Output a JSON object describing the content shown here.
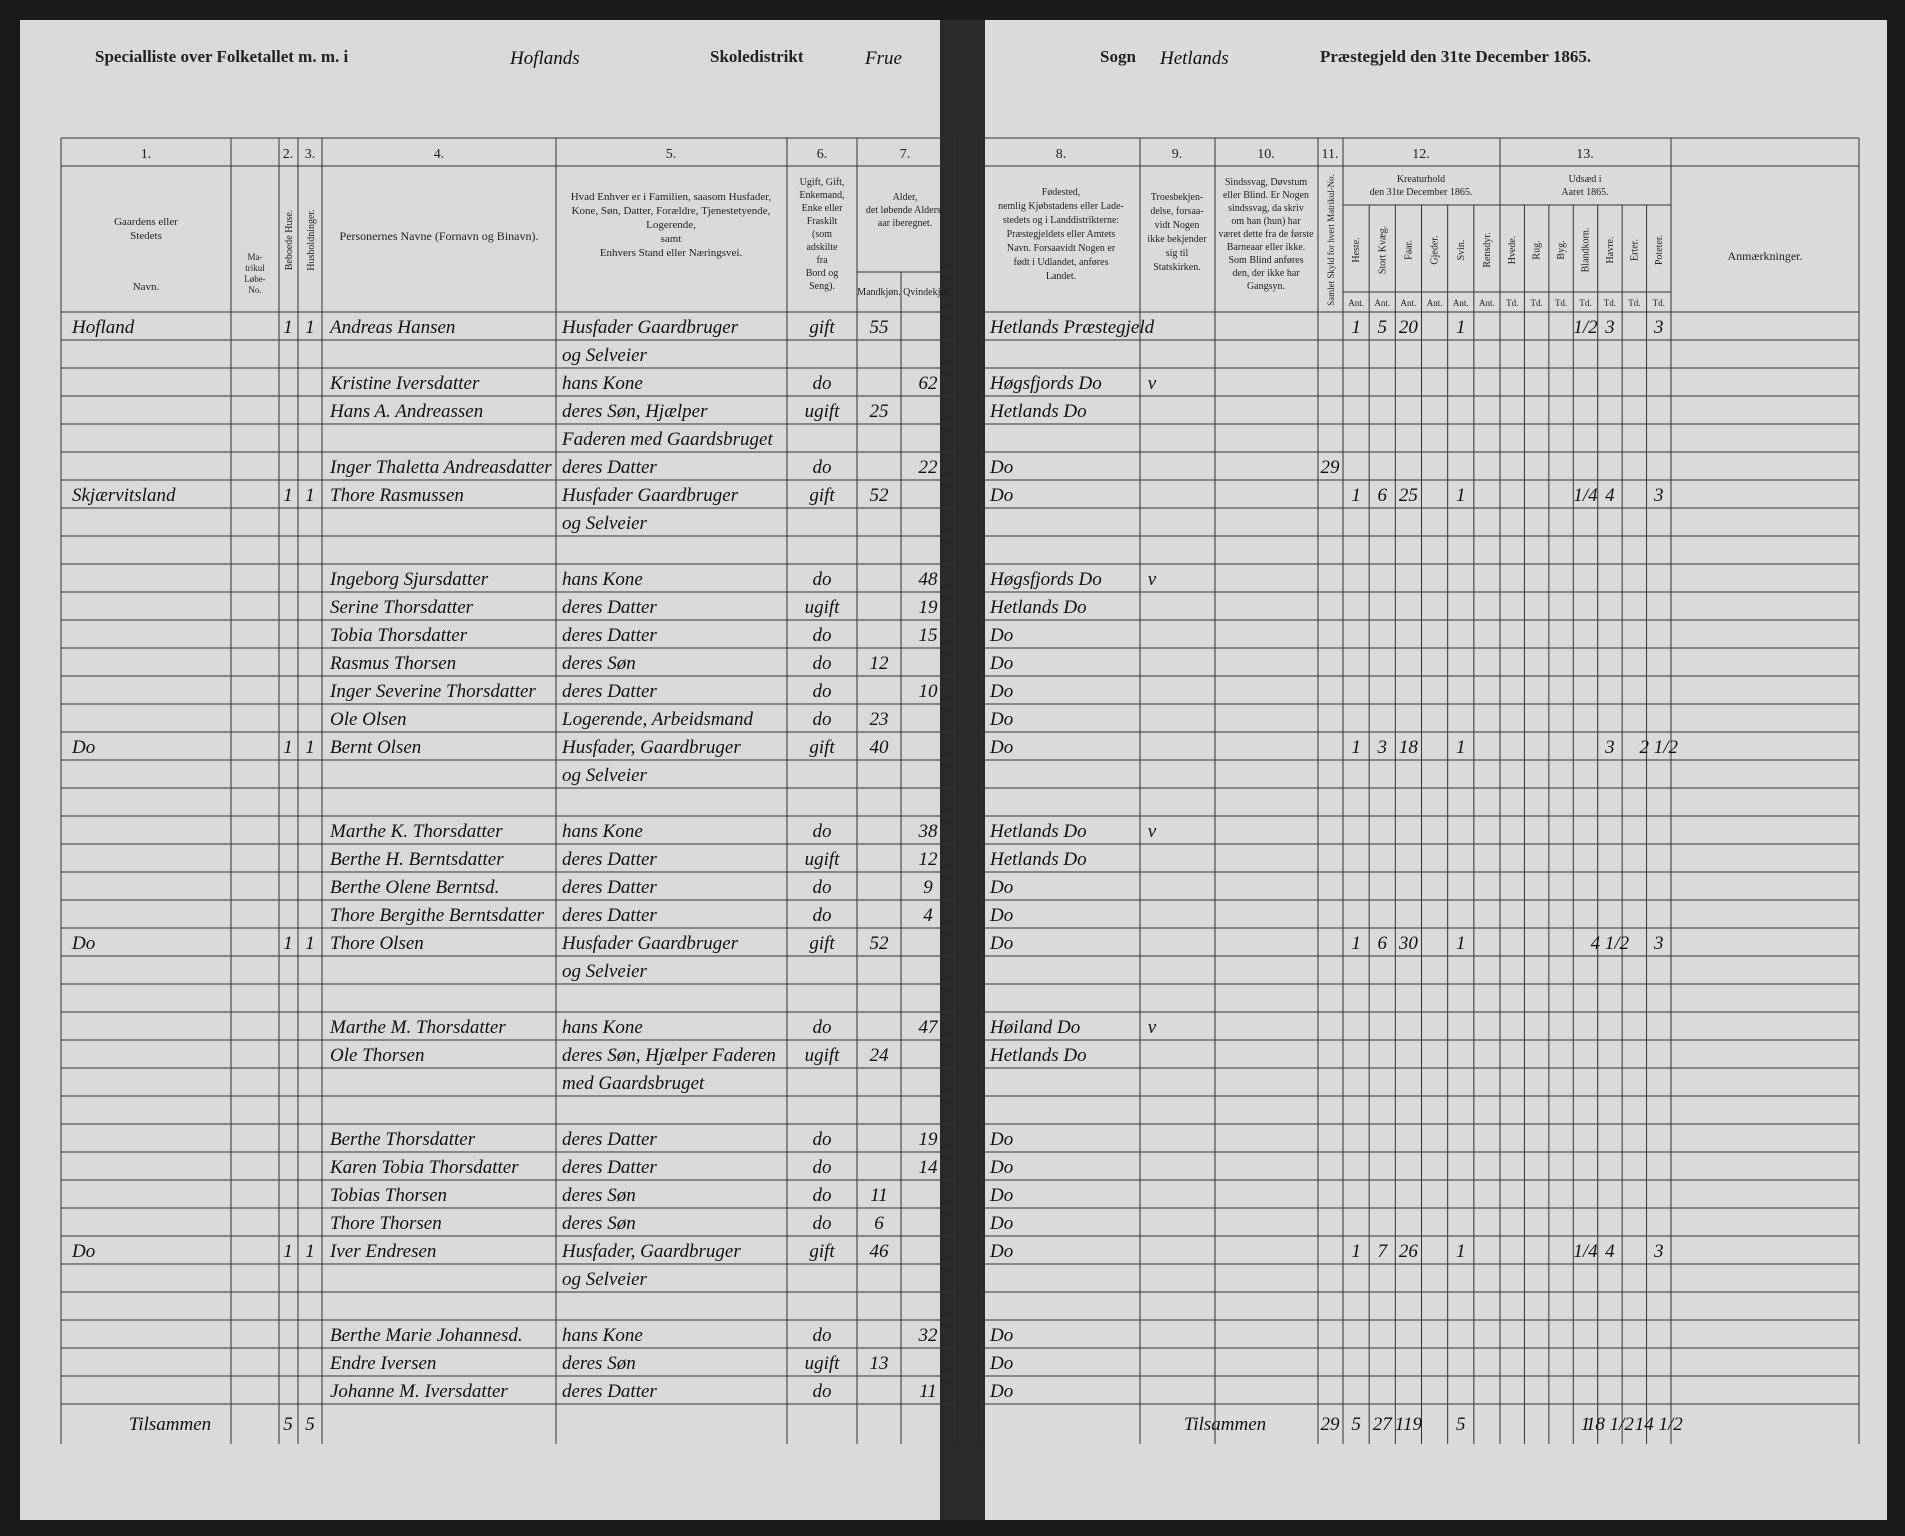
{
  "header": {
    "left": {
      "printed": "Specialliste over Folketallet m. m. i",
      "district": "Hoflands",
      "printed2": "Skoledistrikt",
      "extra": "Frue"
    },
    "right": {
      "printed": "Sogn",
      "parish": "Hetlands",
      "printed2": "Præstegjeld den 31te December 1865."
    }
  },
  "columns": {
    "numbers": [
      "1.",
      "2.",
      "3.",
      "4.",
      "5.",
      "6.",
      "7.",
      "8.",
      "9.",
      "10.",
      "11.",
      "12.",
      "13."
    ],
    "farm": [
      "Gaardens eller",
      "Stedets"
    ],
    "farm_name": "Navn.",
    "matr": [
      "Ma-",
      "trikul",
      "Løbe-",
      "No."
    ],
    "houses": "Beboede Huse.",
    "households": "Husholdninger.",
    "name": [
      "Personernes Navne (Fornavn og Binavn)."
    ],
    "position": [
      "Hvad Enhver er i Familien, saasom Husfader,",
      "Kone, Søn, Datter, Forældre, Tjenestetyende,",
      "Logerende,",
      "samt",
      "Enhvers Stand eller Næringsvei."
    ],
    "status": [
      "Ugift, Gift,",
      "Enkemand,",
      "Enke eller",
      "Fraskilt",
      "(som",
      "adskilte",
      "fra",
      "Bord og",
      "Seng)."
    ],
    "age": [
      "Alder,",
      "det løbende Alders-",
      "aar iberegnet."
    ],
    "male": "Mandkjøn.",
    "female": "Qvindekjøn.",
    "birth": [
      "Fødested,",
      "nemlig Kjøbstadens eller Lade-",
      "stedets og i Landdistrikterne:",
      "Præstegjeldets eller Amtets",
      "Navn. Forsaavidt Nogen er",
      "født i Udlandet, anføres",
      "Landet."
    ],
    "faith": [
      "Troesbekjen-",
      "delse, forsaa-",
      "vidt Nogen",
      "ikke bekjender",
      "sig til",
      "Statskirken."
    ],
    "disability": [
      "Sindssvag, Døvstum",
      "eller Blind. Er Nogen",
      "sindssvag, da skriv",
      "om han (hun) har",
      "været dette fra de første",
      "Barneaar eller ikke.",
      "Som Blind anføres",
      "den, der ikke har",
      "Gangsyn."
    ],
    "tax": "Samlet Skyld for hvert Matrikul-No.",
    "livestock": [
      "Kreaturhold",
      "den 31te December 1865."
    ],
    "livestock_subs": [
      {
        "name": "Heste.",
        "unit": "Ant."
      },
      {
        "name": "Stort Kvæg.",
        "unit": "Ant."
      },
      {
        "name": "Faar.",
        "unit": "Ant."
      },
      {
        "name": "Gjeder.",
        "unit": "Ant."
      },
      {
        "name": "Svin.",
        "unit": "Ant."
      },
      {
        "name": "Rensdyr.",
        "unit": "Ant."
      }
    ],
    "sowing": [
      "Udsæd i",
      "Aaret 1865."
    ],
    "sowing_subs": [
      {
        "name": "Hvede.",
        "unit": "Td."
      },
      {
        "name": "Rug.",
        "unit": "Td."
      },
      {
        "name": "Byg.",
        "unit": "Td."
      },
      {
        "name": "Blandkorn.",
        "unit": "Td."
      },
      {
        "name": "Havre.",
        "unit": "Td."
      },
      {
        "name": "Erter.",
        "unit": "Td."
      },
      {
        "name": "Poteter.",
        "unit": "Td."
      }
    ],
    "remarks": "Anmærkninger."
  },
  "rows": [
    {
      "farm": "Hofland",
      "houses": "1",
      "households": "1",
      "name": "Andreas Hansen",
      "position": "Husfader Gaardbruger",
      "status": "gift",
      "male": "55",
      "birth": "Hetlands Præstegjeld",
      "horses": "1",
      "cattle": "5",
      "sheep": "20",
      "pigs": "1",
      "mixed": "1/2",
      "oats": "3",
      "potatoes": "3"
    },
    {
      "position": "og Selveier"
    },
    {
      "name": "Kristine Iversdatter",
      "position": "hans Kone",
      "status": "do",
      "female": "62",
      "birth": "Høgsfjords Do",
      "check": "v"
    },
    {
      "name": "Hans A. Andreassen",
      "position": "deres Søn, Hjælper",
      "status": "ugift",
      "male": "25",
      "birth": "Hetlands Do"
    },
    {
      "position": "Faderen med Gaardsbruget"
    },
    {
      "name": "Inger Thaletta Andreasdatter",
      "position": "deres Datter",
      "status": "do",
      "female": "22",
      "birth": "Do",
      "tax": "29"
    },
    {
      "farm": "Skjærvitsland",
      "houses": "1",
      "households": "1",
      "name": "Thore Rasmussen",
      "position": "Husfader Gaardbruger",
      "status": "gift",
      "male": "52",
      "birth": "Do",
      "horses": "1",
      "cattle": "6",
      "sheep": "25",
      "pigs": "1",
      "mixed": "1/4",
      "oats": "4",
      "potatoes": "3"
    },
    {
      "position": "og Selveier"
    },
    {},
    {
      "name": "Ingeborg Sjursdatter",
      "position": "hans Kone",
      "status": "do",
      "female": "48",
      "birth": "Høgsfjords Do",
      "check": "v"
    },
    {
      "name": "Serine Thorsdatter",
      "position": "deres Datter",
      "status": "ugift",
      "female": "19",
      "birth": "Hetlands Do"
    },
    {
      "name": "Tobia Thorsdatter",
      "position": "deres Datter",
      "status": "do",
      "female": "15",
      "birth": "Do"
    },
    {
      "name": "Rasmus Thorsen",
      "position": "deres Søn",
      "status": "do",
      "male": "12",
      "birth": "Do"
    },
    {
      "name": "Inger Severine Thorsdatter",
      "position": "deres Datter",
      "status": "do",
      "female": "10",
      "birth": "Do"
    },
    {
      "name": "Ole Olsen",
      "position": "Logerende, Arbeidsmand",
      "status": "do",
      "male": "23",
      "birth": "Do"
    },
    {
      "farm": "Do",
      "houses": "1",
      "households": "1",
      "name": "Bernt Olsen",
      "position": "Husfader, Gaardbruger",
      "status": "gift",
      "male": "40",
      "birth": "Do",
      "horses": "1",
      "cattle": "3",
      "sheep": "18",
      "pigs": "1",
      "oats": "3",
      "potatoes": "2 1/2"
    },
    {
      "position": "og Selveier"
    },
    {},
    {
      "name": "Marthe K. Thorsdatter",
      "position": "hans Kone",
      "status": "do",
      "female": "38",
      "birth": "Hetlands Do",
      "check": "v"
    },
    {
      "name": "Berthe H. Berntsdatter",
      "position": "deres Datter",
      "status": "ugift",
      "female": "12",
      "birth": "Hetlands Do"
    },
    {
      "name": "Berthe Olene Berntsd.",
      "position": "deres Datter",
      "status": "do",
      "female": "9",
      "birth": "Do"
    },
    {
      "name": "Thore Bergithe Berntsdatter",
      "position": "deres Datter",
      "status": "do",
      "female": "4",
      "birth": "Do"
    },
    {
      "farm": "Do",
      "houses": "1",
      "households": "1",
      "name": "Thore Olsen",
      "position": "Husfader Gaardbruger",
      "status": "gift",
      "male": "52",
      "birth": "Do",
      "horses": "1",
      "cattle": "6",
      "sheep": "30",
      "pigs": "1",
      "oats": "4 1/2",
      "potatoes": "3"
    },
    {
      "position": "og Selveier"
    },
    {},
    {
      "name": "Marthe M. Thorsdatter",
      "position": "hans Kone",
      "status": "do",
      "female": "47",
      "birth": "Høiland Do",
      "check": "v"
    },
    {
      "name": "Ole Thorsen",
      "position": "deres Søn, Hjælper Faderen",
      "status": "ugift",
      "male": "24",
      "birth": "Hetlands Do"
    },
    {
      "position": "med Gaardsbruget"
    },
    {},
    {
      "name": "Berthe Thorsdatter",
      "position": "deres Datter",
      "status": "do",
      "female": "19",
      "birth": "Do"
    },
    {
      "name": "Karen Tobia Thorsdatter",
      "position": "deres Datter",
      "status": "do",
      "female": "14",
      "birth": "Do"
    },
    {
      "name": "Tobias Thorsen",
      "position": "deres Søn",
      "status": "do",
      "male": "11",
      "birth": "Do"
    },
    {
      "name": "Thore Thorsen",
      "position": "deres Søn",
      "status": "do",
      "male": "6",
      "birth": "Do"
    },
    {
      "farm": "Do",
      "houses": "1",
      "households": "1",
      "name": "Iver Endresen",
      "position": "Husfader, Gaardbruger",
      "status": "gift",
      "male": "46",
      "birth": "Do",
      "horses": "1",
      "cattle": "7",
      "sheep": "26",
      "pigs": "1",
      "mixed": "1/4",
      "oats": "4",
      "potatoes": "3"
    },
    {
      "position": "og Selveier"
    },
    {},
    {
      "name": "Berthe Marie Johannesd.",
      "position": "hans Kone",
      "status": "do",
      "female": "32",
      "birth": "Do"
    },
    {
      "name": "Endre Iversen",
      "position": "deres Søn",
      "status": "ugift",
      "male": "13",
      "birth": "Do"
    },
    {
      "name": "Johanne M. Iversdatter",
      "position": "deres Datter",
      "status": "do",
      "female": "11",
      "birth": "Do"
    }
  ],
  "totals": {
    "label": "Tilsammen",
    "houses": "5",
    "households": "5",
    "right_label": "Tilsammen",
    "tax": "29",
    "horses": "5",
    "cattle": "27",
    "sheep": "119",
    "pigs": "5",
    "mixed": "1",
    "oats": "18 1/2",
    "potatoes": "14 1/2"
  }
}
